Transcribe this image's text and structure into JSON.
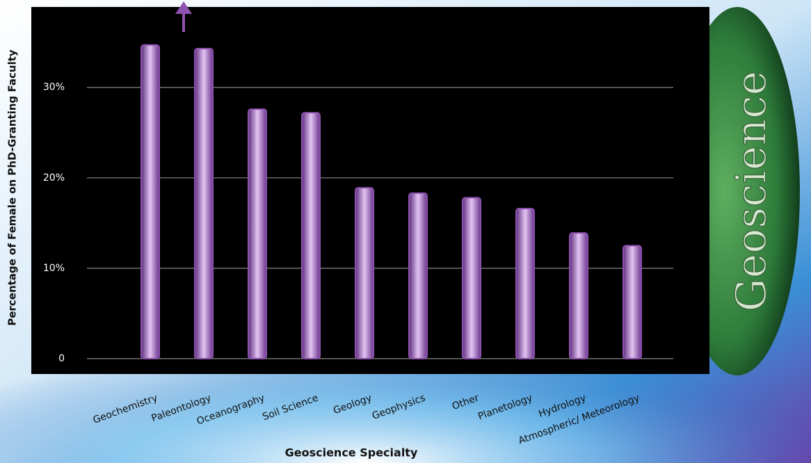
{
  "chart_data": {
    "type": "bar",
    "side_label": "Geoscience",
    "x_label": "Geoscience Specialty",
    "y_label": "Percentage of Female on PhD-Granting Faculty",
    "categories": [
      "Geochemistry",
      "Paleontology",
      "Oceanography",
      "Soil Science",
      "Geology",
      "Geophysics",
      "Other",
      "Planetology",
      "Hydrology",
      "Atmospheric/ Meteorology"
    ],
    "values": [
      34.7,
      34.3,
      27.6,
      27.2,
      18.9,
      18.3,
      17.8,
      16.6,
      13.9,
      12.5
    ],
    "color": "#8e52b0",
    "ylim": [
      -1.7,
      38.9
    ],
    "yticks": [
      0,
      {
        "value": 10,
        "label": "10%"
      },
      {
        "value": 20,
        "label": "20%"
      },
      {
        "value": 30,
        "label": "30%"
      }
    ],
    "grid": true
  }
}
